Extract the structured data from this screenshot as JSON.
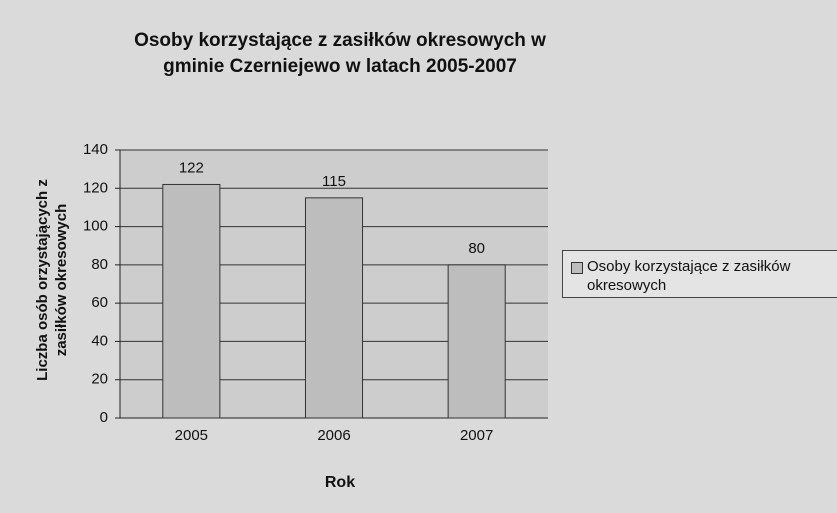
{
  "chart_data": {
    "type": "bar",
    "title": "Osoby korzystające z zasiłków okresowych w gminie Czerniejewo w latach 2005-2007",
    "categories": [
      "2005",
      "2006",
      "2007"
    ],
    "series": [
      {
        "name": "Osoby korzystające z zasiłków okresowych",
        "color": "#bdbdbd",
        "values": [
          122,
          115,
          80
        ]
      }
    ],
    "ylim": [
      0,
      140
    ],
    "yticks": [
      0,
      20,
      40,
      60,
      80,
      100,
      120,
      140
    ],
    "grid": true,
    "x_label": "Rok",
    "y_label": "Liczba osób orzystających z zasiłków okresowych",
    "legend": "right"
  }
}
